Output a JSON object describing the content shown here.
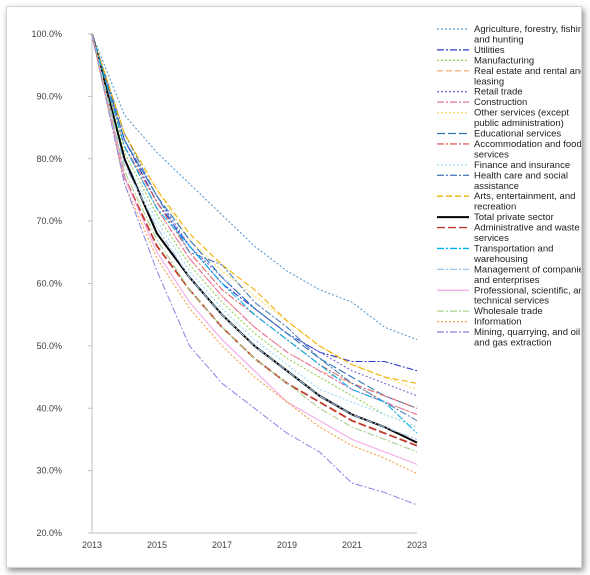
{
  "chart_data": {
    "type": "line",
    "title": "",
    "xlabel": "",
    "ylabel": "",
    "x": [
      2013,
      2014,
      2015,
      2016,
      2017,
      2018,
      2019,
      2020,
      2021,
      2022,
      2023
    ],
    "x_tick_labels": [
      "2013",
      "2015",
      "2017",
      "2019",
      "2021",
      "2023"
    ],
    "y_tick_labels": [
      "20.0%",
      "30.0%",
      "40.0%",
      "50.0%",
      "60.0%",
      "70.0%",
      "80.0%",
      "90.0%",
      "100.0%"
    ],
    "ylim": [
      20,
      100
    ],
    "grid": false,
    "legend_position": "right",
    "series": [
      {
        "name": "Agriculture, forestry, fishing, and hunting",
        "color": "#5b9bd5",
        "dash": "dot",
        "values": [
          100,
          87,
          81,
          76,
          71,
          66,
          62,
          59,
          57,
          53,
          51
        ]
      },
      {
        "name": "Utilities",
        "color": "#2e3bc7",
        "dash": "dashdot",
        "values": [
          100,
          83,
          73,
          66,
          60,
          56,
          52,
          49,
          47.5,
          47.5,
          46
        ]
      },
      {
        "name": "Manufacturing",
        "color": "#92d050",
        "dash": "dot",
        "values": [
          100,
          81,
          71,
          63,
          57,
          52,
          48,
          45,
          42,
          39,
          37
        ]
      },
      {
        "name": "Real estate and rental and leasing",
        "color": "#f4b183",
        "dash": "dash",
        "values": [
          100,
          82,
          72,
          64,
          58,
          53,
          49,
          46,
          44,
          41,
          39
        ]
      },
      {
        "name": "Retail trade",
        "color": "#7a6fd6",
        "dash": "dot",
        "values": [
          100,
          83,
          74,
          66,
          61,
          56,
          52,
          49,
          46,
          44,
          42
        ]
      },
      {
        "name": "Construction",
        "color": "#e573a3",
        "dash": "dashdot",
        "values": [
          100,
          82,
          72,
          64,
          58,
          53,
          49,
          46,
          43,
          41,
          39
        ]
      },
      {
        "name": "Other services (except public administration)",
        "color": "#ffd966",
        "dash": "dot",
        "values": [
          100,
          84,
          75,
          67,
          62,
          58,
          54,
          50,
          47,
          45,
          43
        ]
      },
      {
        "name": "Educational services",
        "color": "#2e75b6",
        "dash": "longdash",
        "values": [
          100,
          83,
          74,
          67,
          61,
          56,
          52,
          48,
          45,
          42,
          40
        ]
      },
      {
        "name": "Accommodation and food services",
        "color": "#e06666",
        "dash": "dashdot",
        "values": [
          100,
          82,
          73,
          65,
          59,
          55,
          51,
          47,
          44,
          42,
          40
        ]
      },
      {
        "name": "Finance and insurance",
        "color": "#9dd9f3",
        "dash": "dot",
        "values": [
          100,
          80,
          70,
          62,
          56,
          51,
          47,
          43,
          41,
          39,
          37
        ]
      },
      {
        "name": "Health care and social assistance",
        "color": "#4f81bd",
        "dash": "dashdot",
        "values": [
          100,
          84,
          74,
          65,
          63,
          57,
          53,
          48,
          44,
          41,
          38
        ]
      },
      {
        "name": "Arts, entertainment, and recreation",
        "color": "#f0b000",
        "dash": "dash",
        "values": [
          100,
          84,
          75,
          68,
          63,
          59,
          54,
          50,
          47,
          45,
          44
        ]
      },
      {
        "name": "Total private sector",
        "color": "#000000",
        "dash": "solid",
        "values": [
          100,
          80,
          68,
          61,
          55,
          50,
          46,
          42,
          39,
          37,
          34.5
        ]
      },
      {
        "name": "Administrative and waste services",
        "color": "#c0392b",
        "dash": "longdash",
        "values": [
          100,
          77,
          66,
          59,
          53,
          48,
          44,
          41,
          38,
          36,
          34
        ]
      },
      {
        "name": "Transportation and warehousing",
        "color": "#00b0f0",
        "dash": "dashdot",
        "values": [
          100,
          82,
          72,
          66,
          60,
          55,
          51,
          47,
          43,
          41,
          36
        ]
      },
      {
        "name": "Management of companies and enterprises",
        "color": "#9dc3e6",
        "dash": "dashdot",
        "values": [
          100,
          79,
          69,
          61,
          55,
          50,
          46,
          42,
          39,
          37,
          35
        ]
      },
      {
        "name": "Professional, scientific, and technical services",
        "color": "#f4a6e8",
        "dash": "solid",
        "values": [
          100,
          77,
          65,
          57,
          51,
          46,
          41,
          38,
          35,
          33,
          31
        ]
      },
      {
        "name": "Wholesale trade",
        "color": "#a9d18e",
        "dash": "dashdot",
        "values": [
          100,
          78,
          67,
          59,
          53,
          48,
          44,
          40,
          37,
          35,
          33
        ]
      },
      {
        "name": "Information",
        "color": "#f4a040",
        "dash": "dot",
        "values": [
          100,
          76,
          64,
          56,
          50,
          45,
          41,
          37,
          34,
          32,
          29.5
        ]
      },
      {
        "name": "Mining, quarrying, and oil and gas extraction",
        "color": "#8e8ee8",
        "dash": "dashdot",
        "values": [
          100,
          76,
          62,
          50,
          44,
          40,
          36,
          33,
          28,
          26.5,
          24.5
        ]
      }
    ]
  }
}
